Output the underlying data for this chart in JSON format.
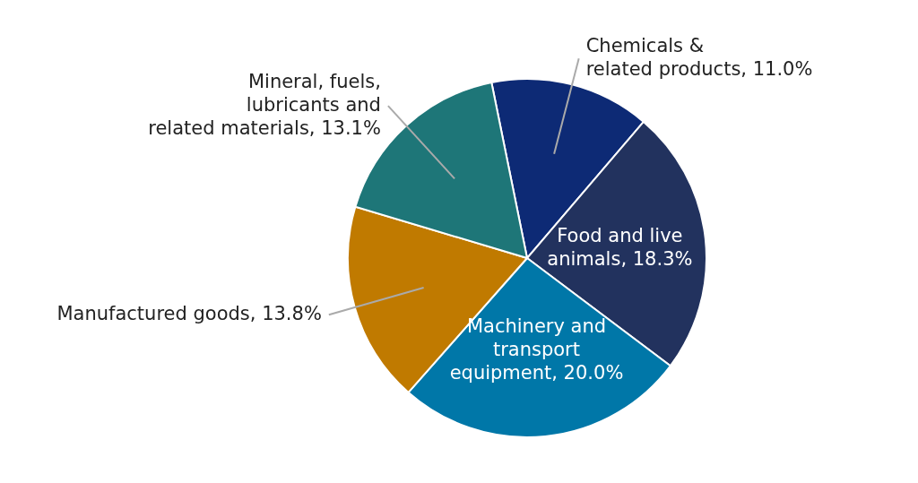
{
  "chart_data": {
    "type": "pie",
    "categories": [
      "Chemicals & related products",
      "Food and live animals",
      "Machinery and transport equipment",
      "Manufactured goods",
      "Mineral, fuels, lubricants and related materials"
    ],
    "values": [
      11.0,
      18.3,
      20.0,
      13.8,
      13.1
    ],
    "value_labels": [
      "11.0%",
      "18.3%",
      "20.0%",
      "13.8%",
      "13.1%"
    ],
    "colors": [
      "#0d2a75",
      "#22325e",
      "#0077a8",
      "#c07a00",
      "#1e7678"
    ]
  }
}
